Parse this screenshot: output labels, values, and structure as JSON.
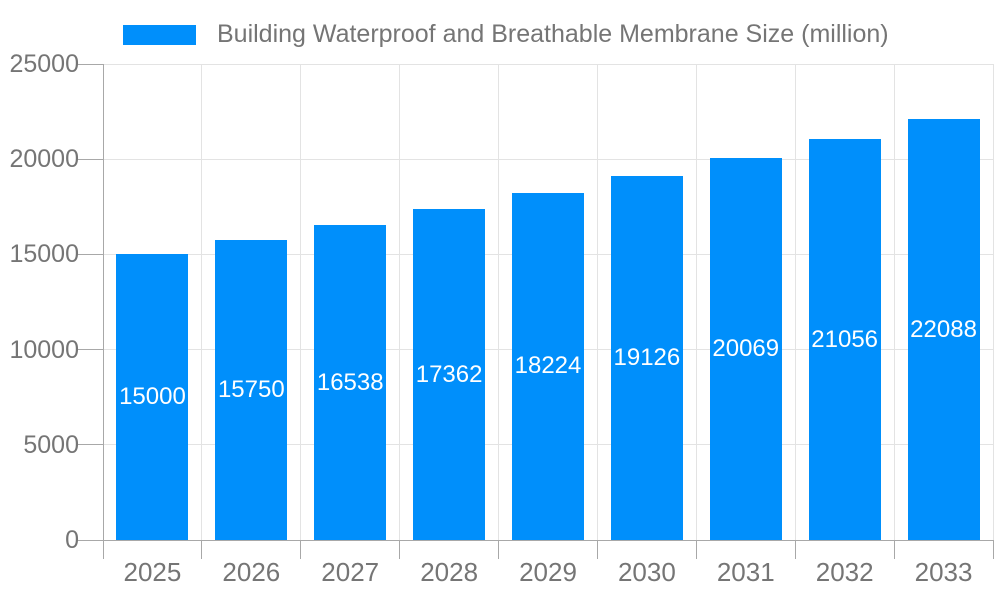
{
  "legend": {
    "label": "Building Waterproof and Breathable Membrane Size (million)"
  },
  "colors": {
    "bar": "#008ffb",
    "value_label": "#ffffff",
    "axis_label": "#757575",
    "axis_line": "#a8a8a8",
    "gridline": "#e3e3e3",
    "background": "#ffffff"
  },
  "chart_data": {
    "type": "bar",
    "title": "Building Waterproof and Breathable Membrane Size (million)",
    "categories": [
      "2025",
      "2026",
      "2027",
      "2028",
      "2029",
      "2030",
      "2031",
      "2032",
      "2033"
    ],
    "values": [
      15000,
      15750,
      16538,
      17362,
      18224,
      19126,
      20069,
      21056,
      22088
    ],
    "value_labels_shown": true,
    "xlabel": "",
    "ylabel": "",
    "ylim": [
      0,
      25000
    ],
    "yticks": [
      0,
      5000,
      10000,
      15000,
      20000,
      25000
    ],
    "grid": true,
    "legend_position": "top"
  }
}
